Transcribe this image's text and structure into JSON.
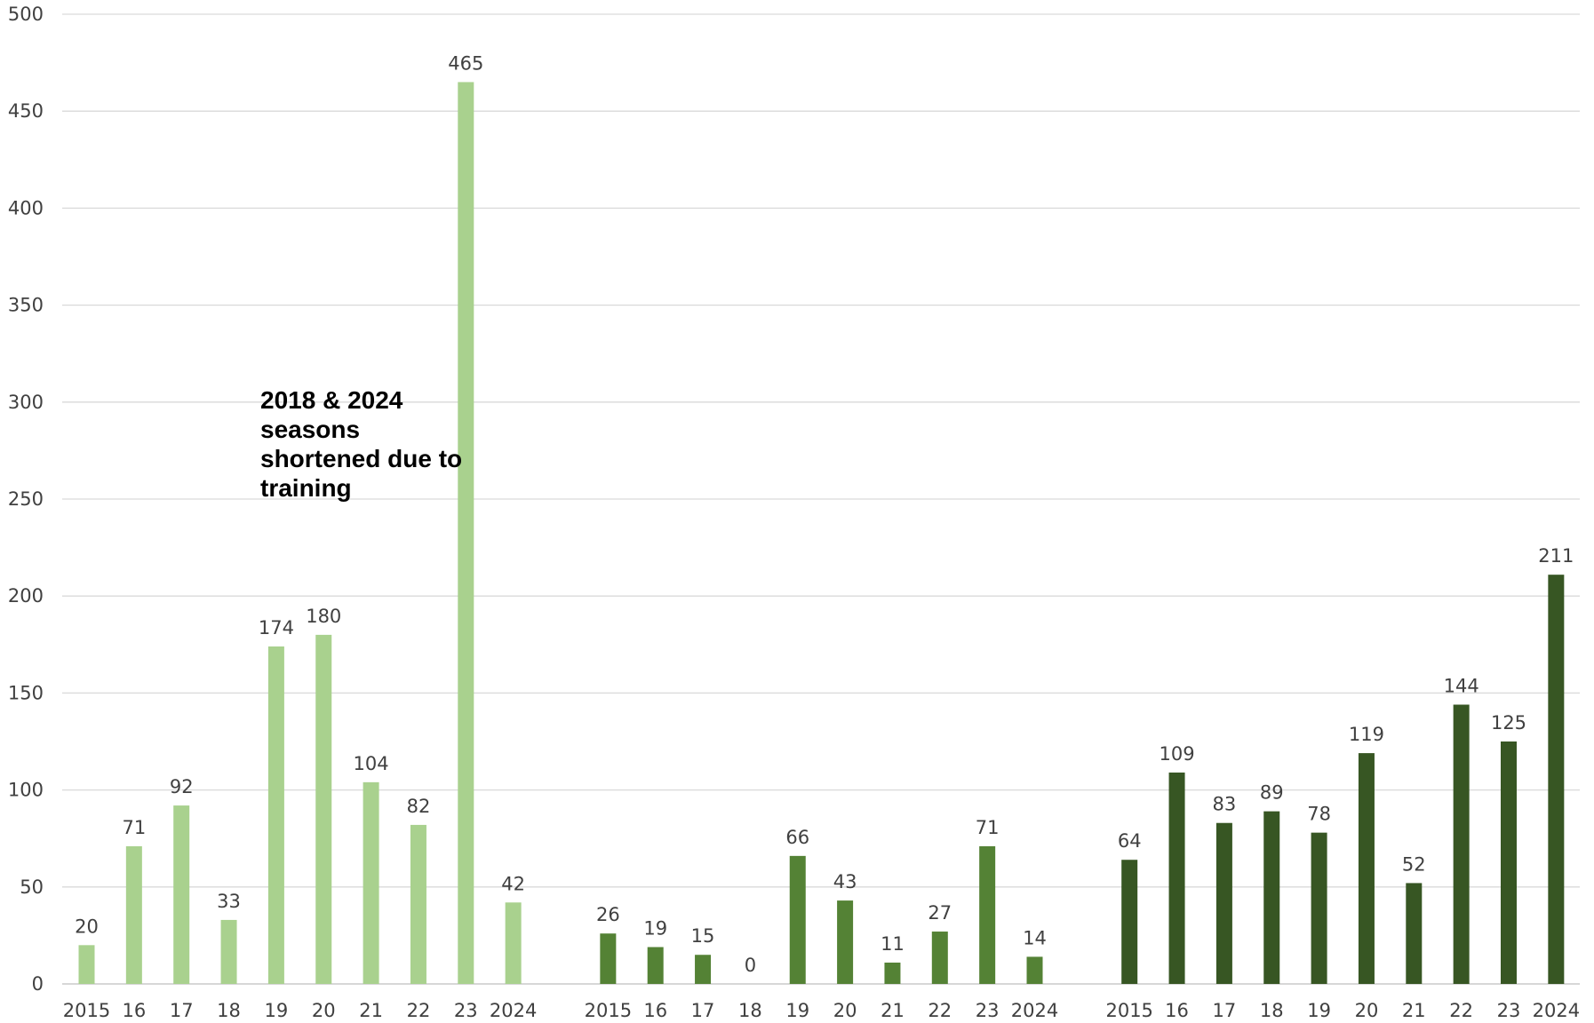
{
  "chart_data": {
    "type": "bar",
    "ylim": [
      0,
      500
    ],
    "yticks": [
      0,
      50,
      100,
      150,
      200,
      250,
      300,
      350,
      400,
      450,
      500
    ],
    "grid": true,
    "annotation": "2018 & 2024 seasons shortened due to training",
    "colors": [
      "#a9d18e",
      "#548235",
      "#375623"
    ],
    "groups": [
      {
        "categories": [
          "2015",
          "16",
          "17",
          "18",
          "19",
          "20",
          "21",
          "22",
          "23",
          "2024"
        ],
        "values": [
          20,
          71,
          92,
          33,
          174,
          180,
          104,
          82,
          465,
          42
        ]
      },
      {
        "categories": [
          "2015",
          "16",
          "17",
          "18",
          "19",
          "20",
          "21",
          "22",
          "23",
          "2024"
        ],
        "values": [
          26,
          19,
          15,
          0,
          66,
          43,
          11,
          27,
          71,
          14
        ]
      },
      {
        "categories": [
          "2015",
          "16",
          "17",
          "18",
          "19",
          "20",
          "21",
          "22",
          "23",
          "2024"
        ],
        "values": [
          64,
          109,
          83,
          89,
          78,
          119,
          52,
          144,
          125,
          211
        ]
      }
    ]
  }
}
